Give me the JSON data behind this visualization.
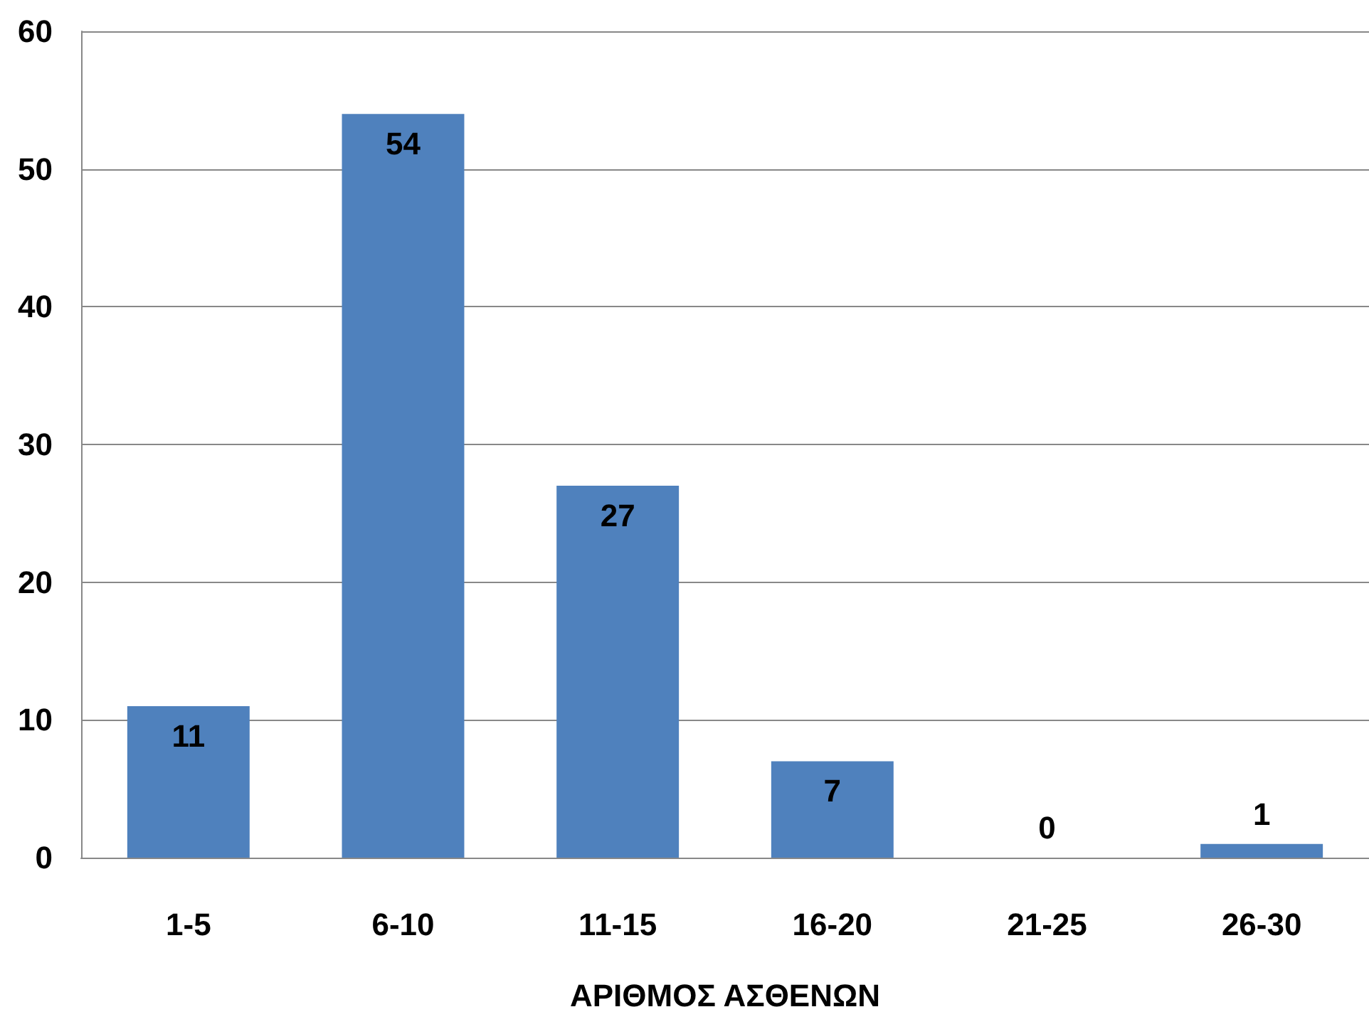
{
  "chart_data": {
    "type": "bar",
    "xlabel": "ΑΡΙΘΜΟΣ ΑΣΘΕΝΩΝ",
    "categories": [
      "1-5",
      "6-10",
      "11-15",
      "16-20",
      "21-25",
      "26-30"
    ],
    "values": [
      11,
      54,
      27,
      7,
      0,
      1
    ],
    "color": "#4f81bd",
    "ylim": [
      0,
      60
    ],
    "yticks": [
      0,
      10,
      20,
      30,
      40,
      50,
      60
    ],
    "grid": "y",
    "data_labels": true
  }
}
